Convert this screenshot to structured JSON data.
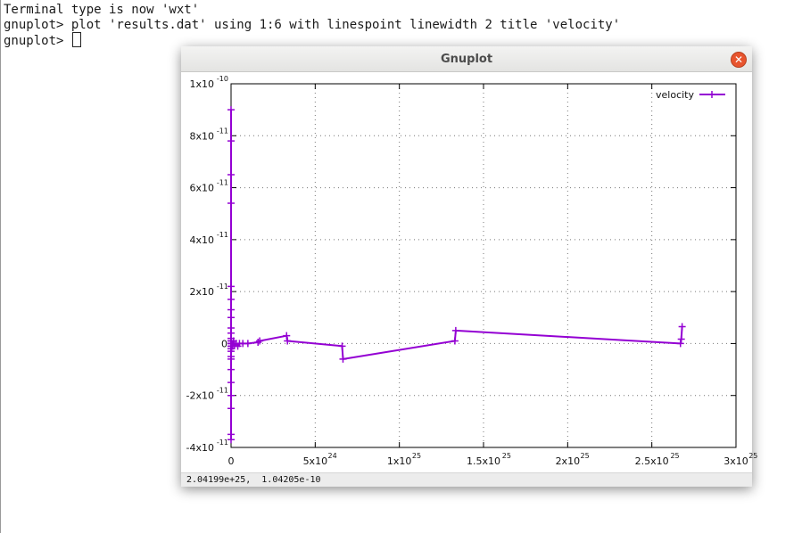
{
  "terminal": {
    "lines": [
      "Terminal type is now 'wxt'",
      "gnuplot> plot 'results.dat' using 1:6 with linespoint linewidth 2 title 'velocity'",
      "gnuplot> "
    ]
  },
  "window": {
    "title": "Gnuplot",
    "close_icon": "close-icon",
    "status": "2.04199e+25,  1.04205e-10"
  },
  "colors": {
    "series": "#9400d3",
    "close_button": "#e8542e",
    "title_bar": "#e9e9e7"
  },
  "chart_data": {
    "type": "line",
    "title": "",
    "xlabel": "",
    "ylabel": "",
    "grid": true,
    "legend_position": "top-right",
    "xlim": [
      0,
      3e+25
    ],
    "ylim": [
      -4e-11,
      1e-10
    ],
    "x_ticks": [
      {
        "value": 0,
        "mantissa": "0",
        "exponent": ""
      },
      {
        "value": 5e+24,
        "mantissa": "5x10",
        "exponent": "24"
      },
      {
        "value": 1e+25,
        "mantissa": "1x10",
        "exponent": "25"
      },
      {
        "value": 1.5e+25,
        "mantissa": "1.5x10",
        "exponent": "25"
      },
      {
        "value": 2e+25,
        "mantissa": "2x10",
        "exponent": "25"
      },
      {
        "value": 2.5e+25,
        "mantissa": "2.5x10",
        "exponent": "25"
      },
      {
        "value": 3e+25,
        "mantissa": "3x10",
        "exponent": "25"
      }
    ],
    "y_ticks": [
      {
        "value": 1e-10,
        "mantissa": "1x10",
        "exponent": "-10"
      },
      {
        "value": 8e-11,
        "mantissa": "8x10",
        "exponent": "-11"
      },
      {
        "value": 6e-11,
        "mantissa": "6x10",
        "exponent": "-11"
      },
      {
        "value": 4e-11,
        "mantissa": "4x10",
        "exponent": "-11"
      },
      {
        "value": 2e-11,
        "mantissa": "2x10",
        "exponent": "-11"
      },
      {
        "value": 0,
        "mantissa": "0",
        "exponent": ""
      },
      {
        "value": -2e-11,
        "mantissa": "-2x10",
        "exponent": "-11"
      },
      {
        "value": -4e-11,
        "mantissa": "-4x10",
        "exponent": "-11"
      }
    ],
    "series": [
      {
        "name": "velocity",
        "x": [
          0,
          0,
          0,
          0,
          0,
          0,
          0,
          0,
          0,
          0,
          0,
          0,
          0,
          0,
          0,
          0,
          0,
          0,
          0,
          0,
          0,
          0,
          0,
          0,
          0,
          0,
          0,
          0,
          3e+22,
          6e+22,
          1e+23,
          1.5e+23,
          2e+23,
          3e+23,
          4e+23,
          5e+23,
          7e+23,
          1e+24,
          1.6e+24,
          1.7e+24,
          3.3e+24,
          3.35e+24,
          6.6e+24,
          6.65e+24,
          1.33e+25,
          1.335e+25,
          2.67e+25,
          2.675e+25,
          2.68e+25
        ],
        "y": [
          9e-11,
          7.8e-11,
          6.5e-11,
          5.4e-11,
          2.2e-11,
          1.7e-11,
          1.3e-11,
          1e-11,
          6e-12,
          4e-12,
          2e-12,
          1e-12,
          0,
          -1e-12,
          -2e-12,
          -3e-12,
          -5e-12,
          -6e-12,
          -1e-11,
          -1.5e-11,
          -2e-11,
          -2.5e-11,
          -3.5e-11,
          -3.7e-11,
          0,
          -1e-12,
          1e-12,
          0,
          -2e-12,
          0,
          -1e-12,
          1e-12,
          -5e-13,
          0,
          -1e-12,
          0,
          0,
          0,
          5e-13,
          1e-12,
          3e-12,
          1e-12,
          -1e-12,
          -6e-12,
          1e-12,
          5e-12,
          0,
          1.7e-12,
          6.5e-12
        ]
      }
    ]
  }
}
